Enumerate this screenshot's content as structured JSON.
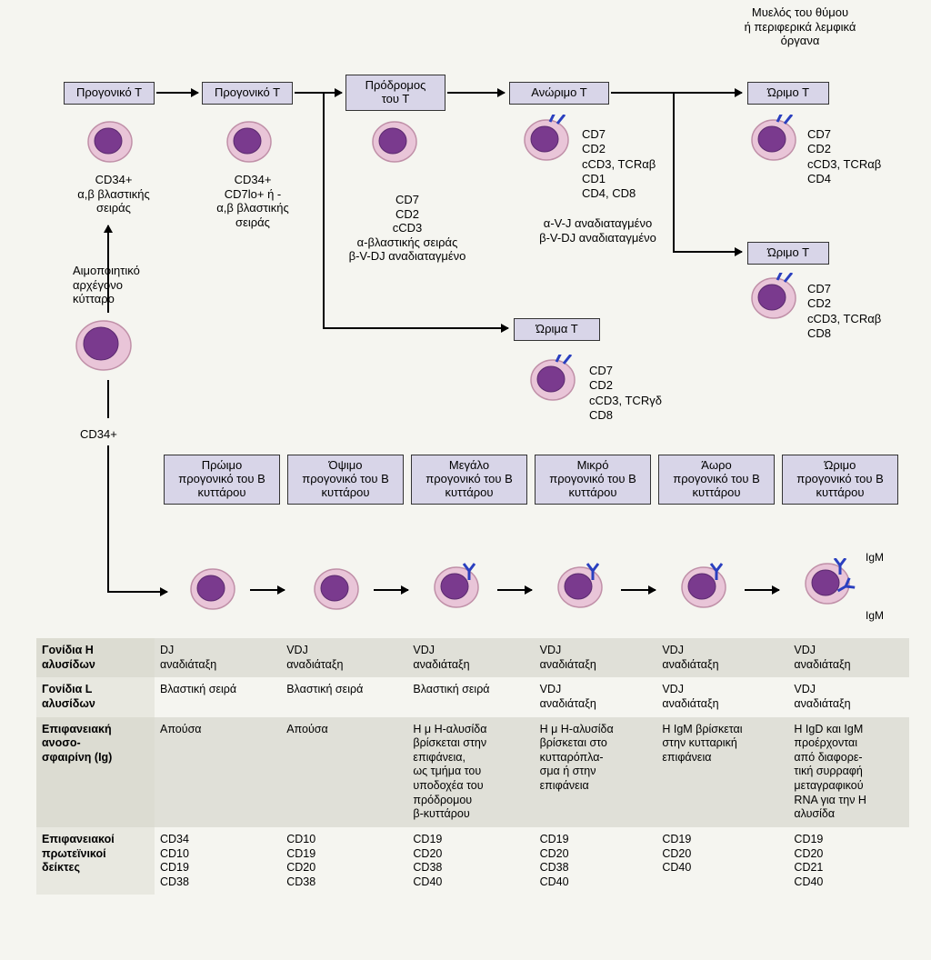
{
  "colors": {
    "stage_bg": "#d8d5e8",
    "cell_fill": "#e9c5d8",
    "cell_stroke": "#c090a8",
    "nucleus_fill": "#7a3a8e",
    "nucleus_stroke": "#5a2a6e",
    "receptor": "#2a3fbf",
    "bg": "#f5f5f0",
    "shaded_row": "#e0e0d8"
  },
  "header": {
    "thymus": "Μυελός του θύμου\nή περιφερικά λεμφικά\nόργανα"
  },
  "t_stages": {
    "s1": "Προγονικό Τ",
    "s2": "Προγονικό Τ",
    "s3": "Πρόδρομος\nτου Τ",
    "s4": "Ανώριμο Τ",
    "s5a": "Ώριμο Τ",
    "s5b": "Ώριμο Τ",
    "s5c": "Ώριμα Τ"
  },
  "t_desc": {
    "d1": "CD34+\nα,β βλαστικής\nσειράς",
    "d2": "CD34+\nCD7lo+ ή -\nα,β βλαστικής\nσειράς",
    "d3": "CD7\nCD2\ncCD3\nα-βλαστικής σειράς\nβ-V-DJ αναδιαταγμένο",
    "d4": "CD7\nCD2\ncCD3, TCRαβ\nCD1\nCD4, CD8",
    "d4b": "α-V-J αναδιαταγμένο\nβ-V-DJ αναδιαταγμένο",
    "d5a": "CD7\nCD2\ncCD3, TCRαβ\nCD4",
    "d5b": "CD7\nCD2\ncCD3, TCRαβ\nCD8",
    "d5c": "CD7\nCD2\ncCD3, TCRγδ\nCD8"
  },
  "stem": {
    "label": "Αιμοποιητικό\nαρχέγονο\nκύτταρο",
    "marker": "CD34+"
  },
  "b_stages": {
    "b1": "Πρώιμο\nπρογονικό του Β\nκυττάρου",
    "b2": "Όψιμο\nπρογονικό του Β\nκυττάρου",
    "b3": "Μεγάλο\nπρογονικό του Β\nκυττάρου",
    "b4": "Μικρό\nπρογονικό του Β\nκυττάρου",
    "b5": "Άωρο\nπρογονικό του Β\nκυττάρου",
    "b6": "Ώριμο\nπρογονικό του Β\nκυττάρου",
    "igm1": "IgM",
    "igm2": "IgM"
  },
  "btable": {
    "row_h": "Γονίδια Η\nαλυσίδων",
    "row_l": "Γονίδια L\nαλυσίδων",
    "row_ig": "Επιφανειακή\nανοσο-\nσφαιρίνη (Ig)",
    "row_mk": "Επιφανειακοί\nπρωτεϊνικοί\nδείκτες",
    "h": [
      "DJ\nαναδιάταξη",
      "VDJ\nαναδιάταξη",
      "VDJ\nαναδιάταξη",
      "VDJ\nαναδιάταξη",
      "VDJ\nαναδιάταξη",
      "VDJ\nαναδιάταξη"
    ],
    "l": [
      "Βλαστική σειρά",
      "Βλαστική σειρά",
      "Βλαστική σειρά",
      "VDJ\nαναδιάταξη",
      "VDJ\nαναδιάταξη",
      "VDJ\nαναδιάταξη"
    ],
    "ig": [
      "Απούσα",
      "Απούσα",
      "Η μ Η-αλυσίδα\nβρίσκεται στην\nεπιφάνεια,\nως τμήμα του\nυποδοχέα του\nπρόδρομου\nβ-κυττάρου",
      "Η μ Η-αλυσίδα\nβρίσκεται στο\nκυτταρόπλα-\nσμα ή στην\nεπιφάνεια",
      "Η IgM βρίσκεται\nστην κυτταρική\nεπιφάνεια",
      "Η IgD και IgM\nπροέρχονται\nαπό διαφορε-\nτική συρραφή\nμεταγραφικού\nRNA για την Η\nαλυσίδα"
    ],
    "mk": [
      "CD34\nCD10\nCD19\nCD38",
      "CD10\nCD19\nCD20\nCD38",
      "CD19\nCD20\nCD38\nCD40",
      "CD19\nCD20\nCD38\nCD40",
      "CD19\nCD20\nCD40",
      "CD19\nCD20\nCD21\nCD40"
    ]
  }
}
